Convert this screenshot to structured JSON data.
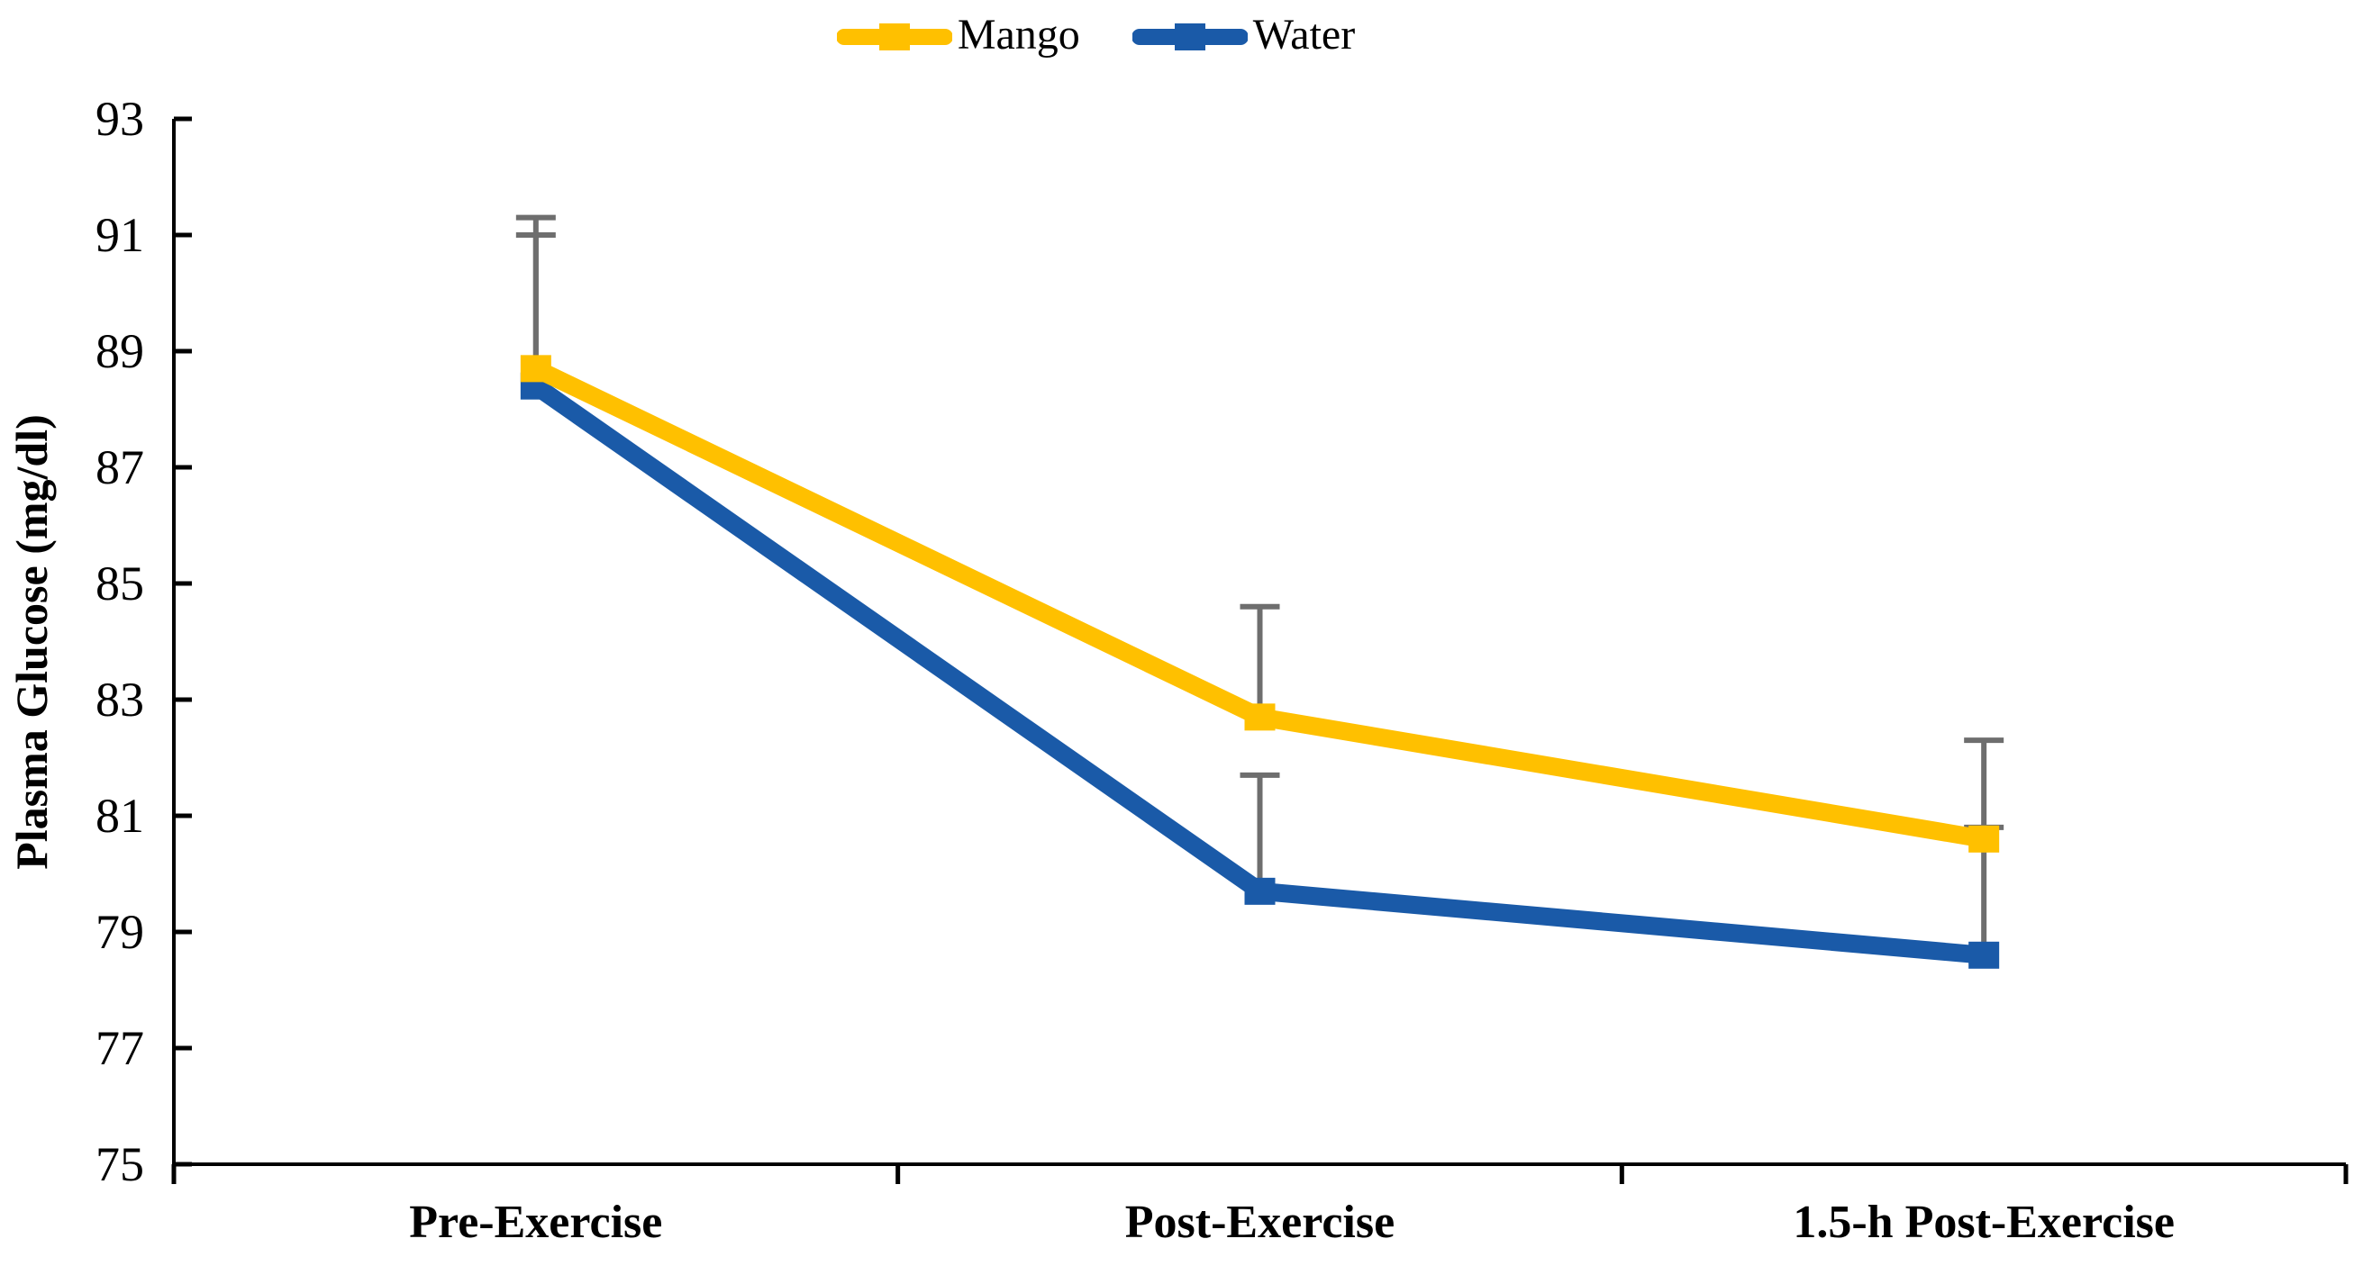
{
  "chart_data": {
    "type": "line",
    "title": "",
    "categories": [
      "Pre-Exercise",
      "Post-Exercise",
      "1.5-h Post-Exercise"
    ],
    "series": [
      {
        "name": "Mango",
        "color": "#FFC000",
        "values": [
          88.7,
          82.7,
          80.6
        ],
        "error_up": [
          2.6,
          1.9,
          1.7
        ]
      },
      {
        "name": "Water",
        "color": "#1A5AA8",
        "values": [
          88.4,
          79.7,
          78.6
        ],
        "error_up": [
          2.6,
          2.0,
          2.2
        ]
      }
    ],
    "xlabel": "",
    "ylabel": "Plasma Glucose (mg/dl)",
    "ylim": [
      75,
      93
    ],
    "ytick_step": 2,
    "ytick_labels": [
      "75",
      "77",
      "79",
      "81",
      "83",
      "85",
      "87",
      "89",
      "91",
      "93"
    ],
    "marker": "square",
    "grid": false,
    "legend_position": "top-center",
    "error_bar_color": "#6E6E6E",
    "axis_color": "#000000",
    "background": "#FFFFFF"
  }
}
